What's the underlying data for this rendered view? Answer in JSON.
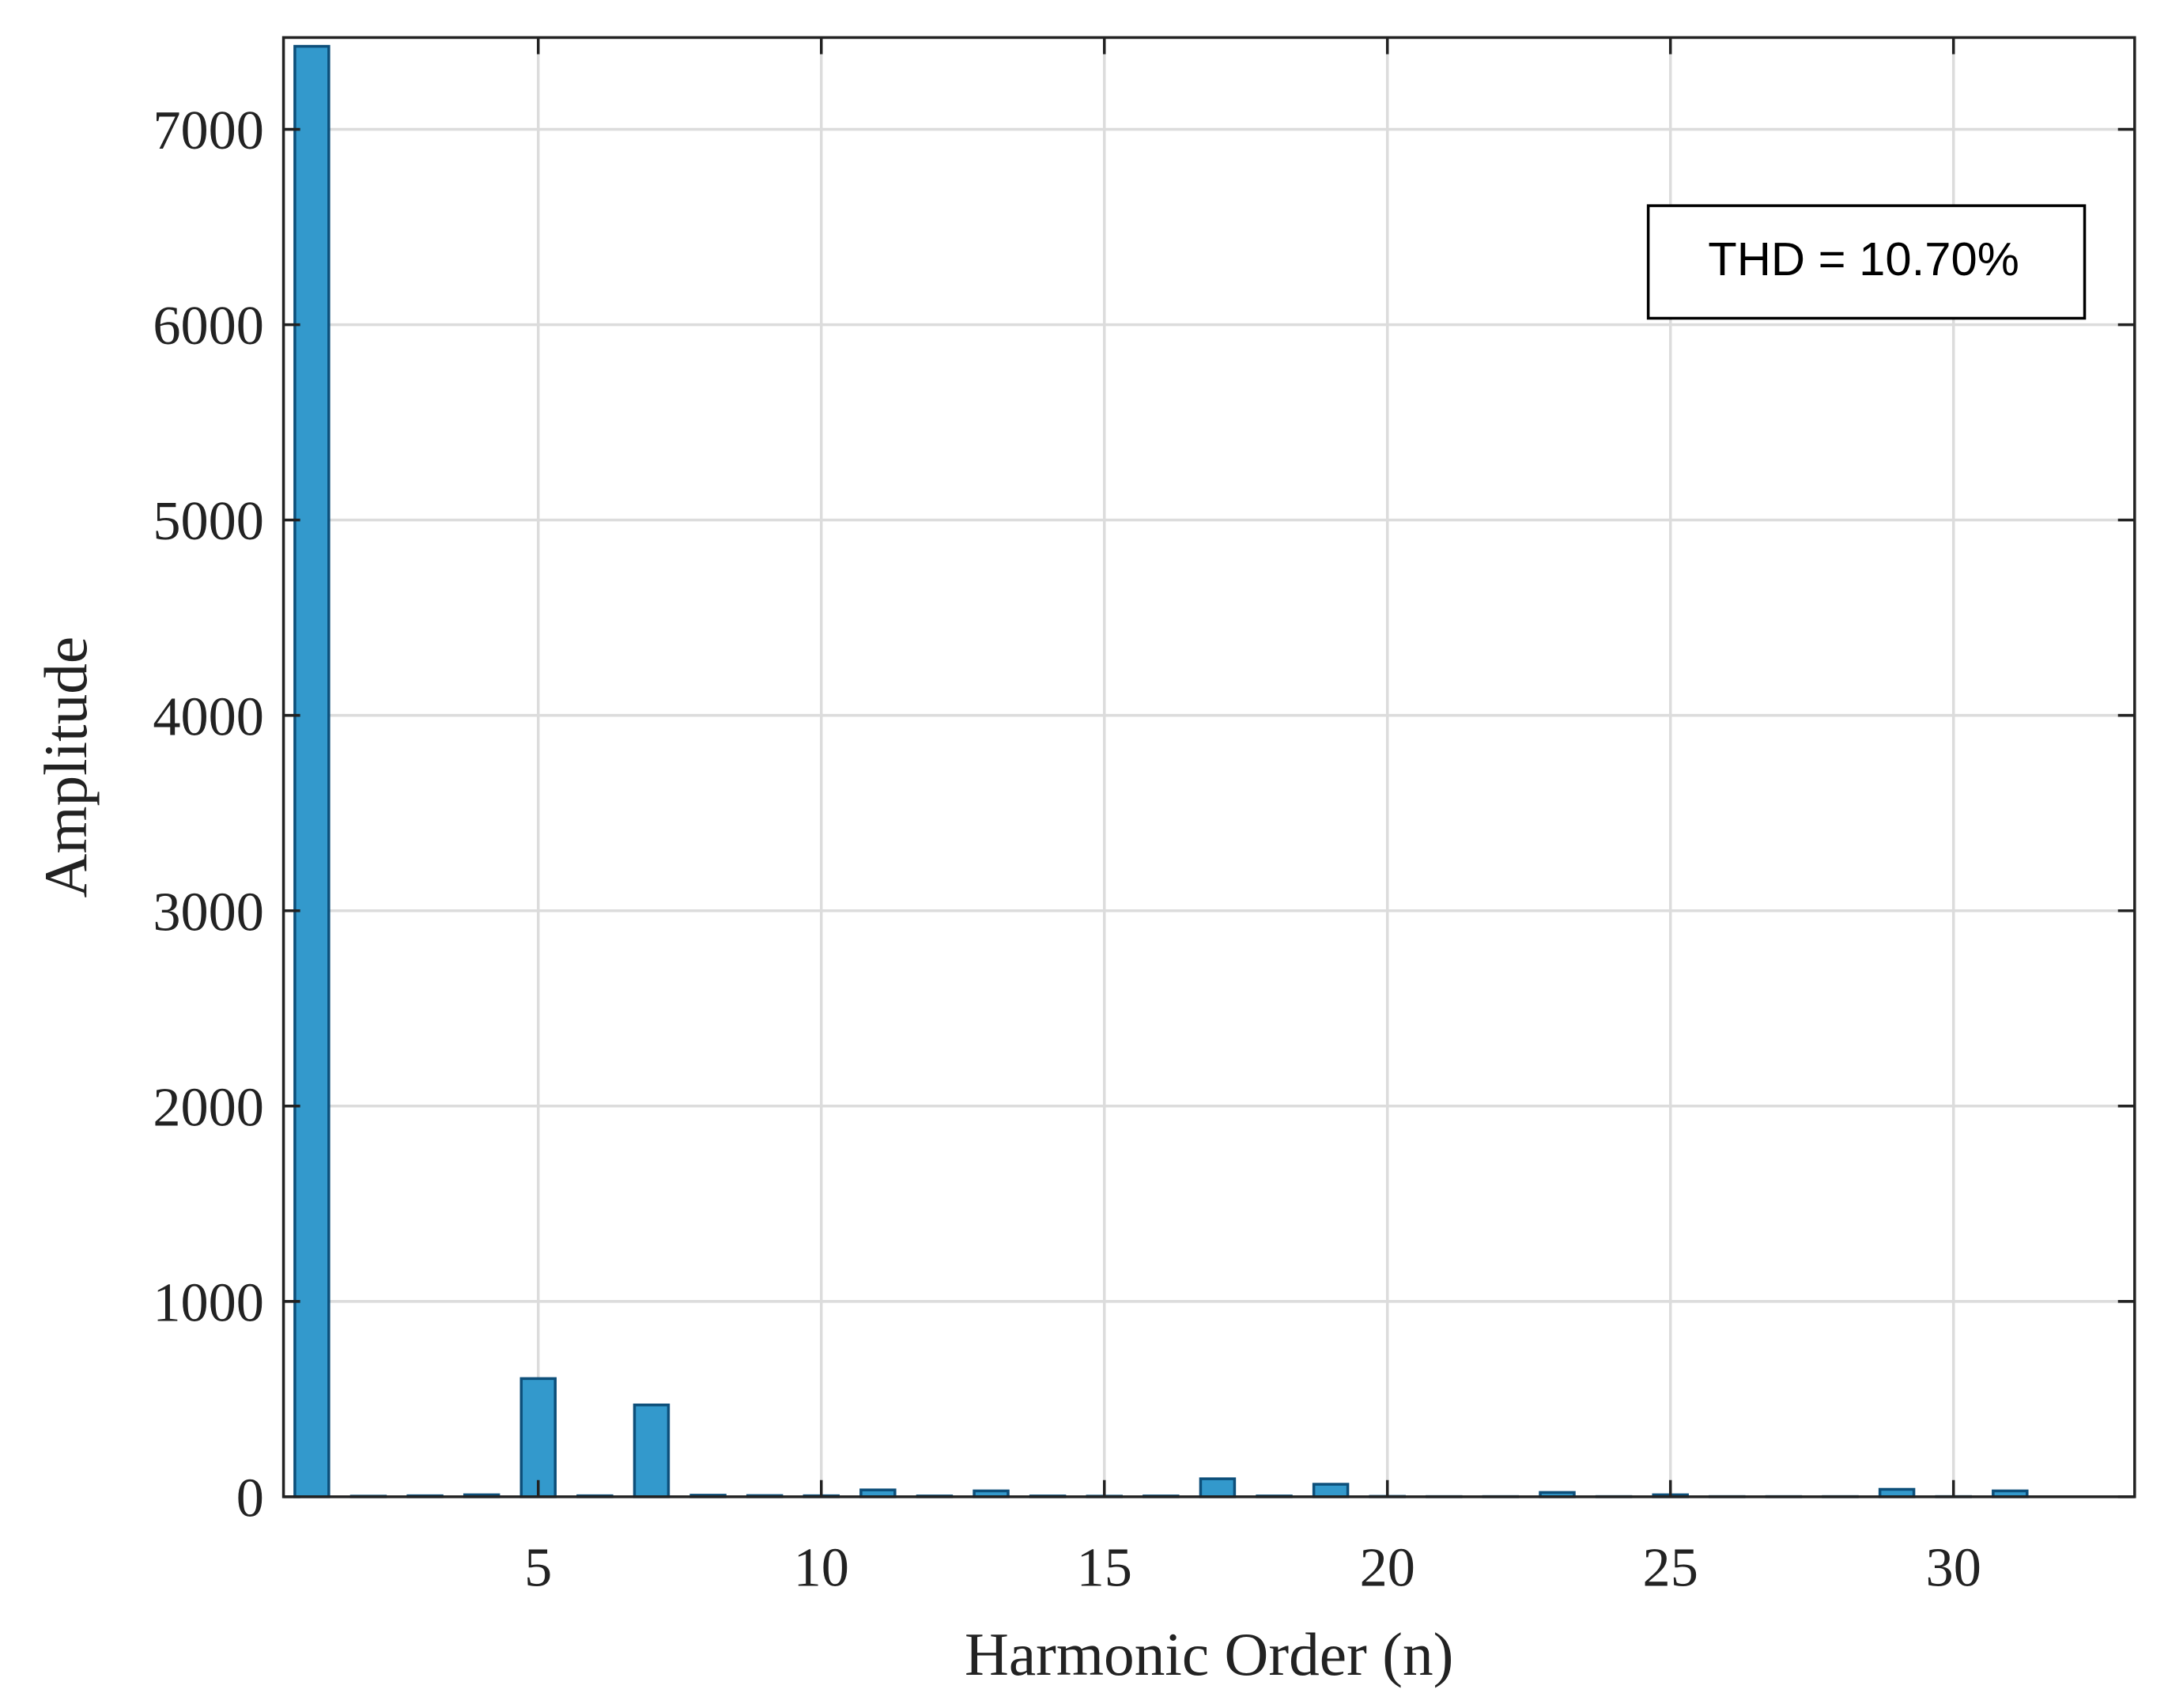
{
  "chart_data": {
    "type": "bar",
    "xlabel": "Harmonic Order (n)",
    "ylabel": "Amplitude",
    "annotation": "THD = 10.70%",
    "x": [
      1,
      2,
      3,
      4,
      5,
      6,
      7,
      8,
      9,
      10,
      11,
      12,
      13,
      14,
      15,
      16,
      17,
      18,
      19,
      20,
      21,
      22,
      23,
      24,
      25,
      26,
      27,
      28,
      29,
      30,
      31
    ],
    "values": [
      7425,
      3,
      5,
      10,
      605,
      5,
      470,
      8,
      6,
      5,
      35,
      4,
      30,
      4,
      3,
      4,
      92,
      4,
      64,
      2,
      1,
      1,
      22,
      1,
      10,
      1,
      1,
      1,
      38,
      1,
      30
    ],
    "color": "#3399cc",
    "edge_color": "#0d4f7a",
    "xlim": [
      0.5,
      33.2
    ],
    "ylim": [
      0,
      7470
    ],
    "xticks": [
      5,
      10,
      15,
      20,
      25,
      30
    ],
    "yticks": [
      0,
      1000,
      2000,
      3000,
      4000,
      5000,
      6000,
      7000
    ],
    "grid": true
  }
}
